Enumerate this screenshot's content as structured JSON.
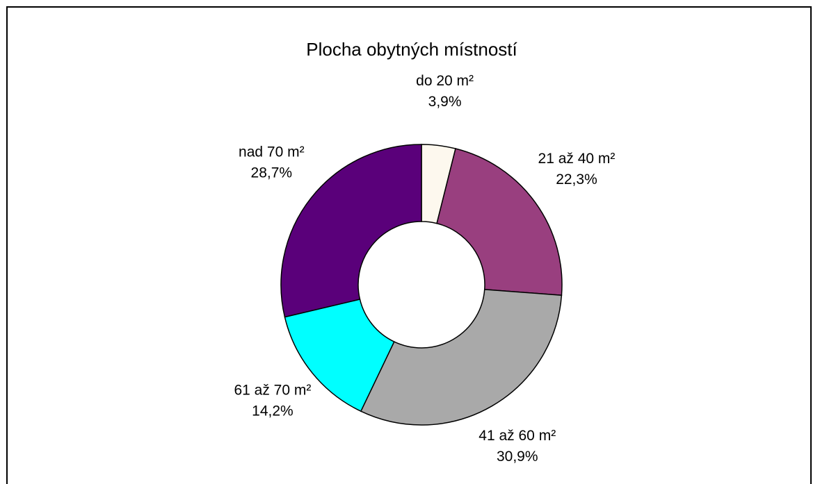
{
  "chart_data": {
    "type": "donut",
    "title": "Plocha obytných místností",
    "categories": [
      "do 20 m²",
      "21 až 40 m²",
      "41 až 60 m²",
      "61 až 70 m²",
      "nad 70 m²"
    ],
    "values": [
      3.9,
      22.3,
      30.9,
      14.2,
      28.7
    ],
    "value_labels": [
      "3,9%",
      "22,3%",
      "30,9%",
      "14,2%",
      "28,7%"
    ],
    "colors": [
      "#fdf8ee",
      "#993f7f",
      "#a9a9a9",
      "#00ffff",
      "#5a007a"
    ]
  }
}
